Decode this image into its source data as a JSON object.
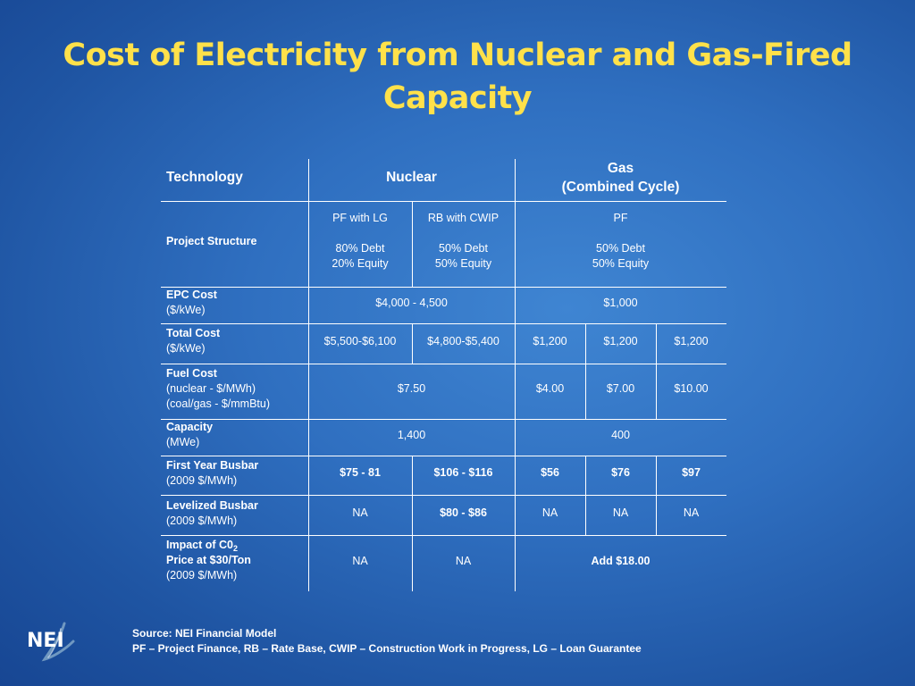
{
  "slide": {
    "title_line1": "Cost of Electricity from Nuclear and Gas-Fired",
    "title_line2": "Capacity"
  },
  "table": {
    "header": {
      "technology": "Technology",
      "nuclear": "Nuclear",
      "gas_line1": "Gas",
      "gas_line2": "(Combined Cycle)"
    },
    "project_structure": {
      "label": "Project Structure",
      "pf_lg_type": "PF with LG",
      "pf_lg_debt": "80% Debt",
      "pf_lg_equity": "20% Equity",
      "rb_type": "RB with CWIP",
      "rb_debt": "50% Debt",
      "rb_equity": "50% Equity",
      "gas_type": "PF",
      "gas_debt": "50% Debt",
      "gas_equity": "50% Equity"
    },
    "epc_cost": {
      "label": "EPC Cost",
      "unit": "($/kWe)",
      "nuclear": "$4,000 - 4,500",
      "gas": "$1,000"
    },
    "total_cost": {
      "label": "Total Cost",
      "unit": "($/kWe)",
      "pf_lg": "$5,500-$6,100",
      "rb": "$4,800-$5,400",
      "gas1": "$1,200",
      "gas2": "$1,200",
      "gas3": "$1,200"
    },
    "fuel_cost": {
      "label": "Fuel Cost",
      "unit1": "(nuclear - $/MWh)",
      "unit2": "(coal/gas - $/mmBtu)",
      "nuclear": "$7.50",
      "gas1": "$4.00",
      "gas2": "$7.00",
      "gas3": "$10.00"
    },
    "capacity": {
      "label": "Capacity",
      "unit": "(MWe)",
      "nuclear": "1,400",
      "gas": "400"
    },
    "first_year_busbar": {
      "label": "First Year Busbar",
      "unit": "(2009 $/MWh)",
      "pf_lg": "$75 - 81",
      "rb": "$106 - $116",
      "gas1": "$56",
      "gas2": "$76",
      "gas3": "$97"
    },
    "levelized_busbar": {
      "label": "Levelized Busbar",
      "unit": "(2009 $/MWh)",
      "pf_lg": "NA",
      "rb": "$80 - $86",
      "gas1": "NA",
      "gas2": "NA",
      "gas3": "NA"
    },
    "co2_impact": {
      "label_prefix": "Impact of C0",
      "label_sub": "2",
      "label_line2": "Price at $30/Ton",
      "unit": "(2009 $/MWh)",
      "pf_lg": "NA",
      "rb": "NA",
      "gas": "Add $18.00"
    }
  },
  "logo": {
    "text": "NEI"
  },
  "footer": {
    "source": "Source: NEI Financial Model",
    "legend": "PF – Project Finance, RB – Rate Base, CWIP – Construction Work in Progress, LG – Loan Guarantee"
  }
}
